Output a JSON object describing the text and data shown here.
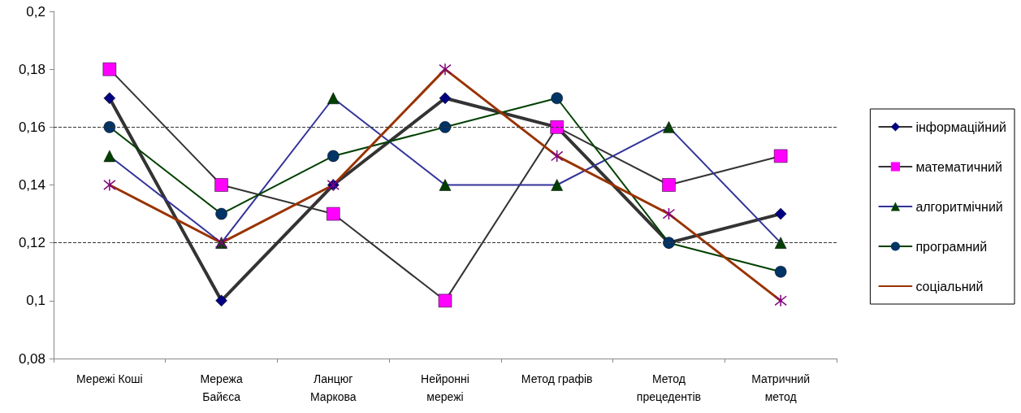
{
  "chart_data": {
    "type": "line",
    "categories": [
      "Мережі Коші",
      "Мережа\nБайєса",
      "Ланцюг\nМаркова",
      "Нейронні\nмережі",
      "Метод графів",
      "Метод\nпрецедентів",
      "Матричний\nметод"
    ],
    "series": [
      {
        "name": "інформаційний",
        "color": "#333333",
        "colors": [
          "#000080",
          "#000080",
          "#000080",
          "#000080",
          "#000080",
          "#000080",
          "#000080"
        ],
        "marker": "diamond",
        "values": [
          0.17,
          0.1,
          0.14,
          0.17,
          0.16,
          0.12,
          0.13
        ]
      },
      {
        "name": "математичний",
        "color": "#333333",
        "colors": [
          "#ff00ff",
          "#ff00ff",
          "#ff00ff",
          "#ff00ff",
          "#ff00ff",
          "#ff00ff",
          "#ff00ff"
        ],
        "marker": "square",
        "values": [
          0.18,
          0.14,
          0.13,
          0.1,
          0.16,
          0.14,
          0.15
        ]
      },
      {
        "name": "алгоритмічний",
        "color": "#333399",
        "colors": [
          "#004000",
          "#004000",
          "#004000",
          "#004000",
          "#004000",
          "#004000",
          "#004000"
        ],
        "marker": "triangle",
        "values": [
          0.15,
          0.12,
          0.17,
          0.14,
          0.14,
          0.16,
          0.12
        ]
      },
      {
        "name": "програмний",
        "color": "#004000",
        "colors": [
          "#003366",
          "#003366",
          "#003366",
          "#003366",
          "#003366",
          "#003366",
          "#003366"
        ],
        "marker": "circle",
        "values": [
          0.16,
          0.13,
          0.15,
          0.16,
          0.17,
          0.12,
          0.11
        ]
      },
      {
        "name": "соціальний",
        "color": "#993300",
        "colors": [
          "#800080",
          "#800080",
          "#800080",
          "#800080",
          "#800080",
          "#800080",
          "#800080"
        ],
        "marker": "cross",
        "values": [
          0.14,
          0.12,
          0.14,
          0.18,
          0.15,
          0.13,
          0.1
        ]
      }
    ],
    "ylim": [
      0.08,
      0.2
    ],
    "yticks": [
      {
        "value": 0.08,
        "label": "0,08"
      },
      {
        "value": 0.1,
        "label": "0,1"
      },
      {
        "value": 0.12,
        "label": "0,12"
      },
      {
        "value": 0.14,
        "label": "0,14"
      },
      {
        "value": 0.16,
        "label": "0,16"
      },
      {
        "value": 0.18,
        "label": "0,18"
      },
      {
        "value": 0.2,
        "label": "0,2"
      }
    ],
    "ref_lines": [
      {
        "axis": "y",
        "value": 0.16,
        "line_style": "dashed",
        "color": "#333333"
      },
      {
        "axis": "y",
        "value": 0.12,
        "line_style": "dashed",
        "color": "#333333"
      }
    ],
    "grid": false,
    "legend": "right"
  }
}
